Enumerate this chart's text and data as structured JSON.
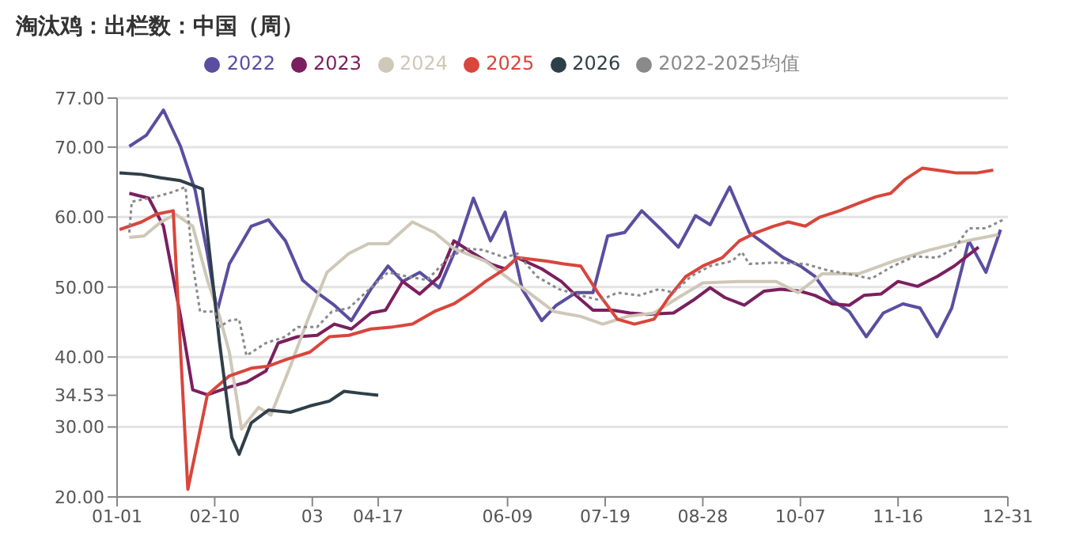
{
  "chart_data": {
    "type": "line",
    "title": "淘汰鸡：出栏数：中国（周）",
    "legend": "top",
    "grid": "y",
    "marker": "none",
    "xlim": [
      "--01-01",
      "--12-31"
    ],
    "xticks": [
      {
        "value": "--01-01",
        "label": "01-01"
      },
      {
        "value": "--02-10",
        "label": "02-10"
      },
      {
        "value": "--03-21",
        "label": "03"
      },
      {
        "value": "--04-17",
        "label": "04-17"
      },
      {
        "value": "--06-09",
        "label": "06-09"
      },
      {
        "value": "--07-19",
        "label": "07-19"
      },
      {
        "value": "--08-28",
        "label": "08-28"
      },
      {
        "value": "--10-07",
        "label": "10-07"
      },
      {
        "value": "--11-16",
        "label": "11-16"
      },
      {
        "value": "--12-31",
        "label": "12-31"
      }
    ],
    "ylim": [
      20,
      77
    ],
    "yticks": [
      {
        "value": 20,
        "label": "20.00"
      },
      {
        "value": 30,
        "label": "30.00"
      },
      {
        "value": 34.53,
        "label": "34.53"
      },
      {
        "value": 40,
        "label": "40.00"
      },
      {
        "value": 50,
        "label": "50.00"
      },
      {
        "value": 60,
        "label": "60.00"
      },
      {
        "value": 70,
        "label": "70.00"
      },
      {
        "value": 77,
        "label": "77.00"
      }
    ],
    "series": [
      {
        "name": "2022",
        "color": "#5b4ea0",
        "line_style": "solid",
        "x": [
          "--01-06",
          "--01-13",
          "--01-20",
          "--01-27",
          "--02-02",
          "--02-07",
          "--02-11",
          "--02-16",
          "--02-25",
          "--03-03",
          "--03-10",
          "--03-17",
          "--03-23",
          "--03-30",
          "--04-06",
          "--04-14",
          "--04-21",
          "--04-27",
          "--05-04",
          "--05-12",
          "--05-20",
          "--05-26",
          "--06-02",
          "--06-08",
          "--06-15",
          "--06-23",
          "--06-29",
          "--07-07",
          "--07-14",
          "--07-20",
          "--07-27",
          "--08-03",
          "--08-11",
          "--08-18",
          "--08-25",
          "--08-31",
          "--09-08",
          "--09-16",
          "--09-23",
          "--09-30",
          "--10-07",
          "--10-13",
          "--10-20",
          "--10-27",
          "--11-03",
          "--11-10",
          "--11-18",
          "--11-25",
          "--12-02",
          "--12-08",
          "--12-15",
          "--12-22",
          "--12-28"
        ],
        "values": [
          70.1,
          71.7,
          75.3,
          70.1,
          63.8,
          54.8,
          46.5,
          53.3,
          58.7,
          59.6,
          56.6,
          51,
          49.2,
          47.4,
          45.2,
          49.7,
          53,
          50.8,
          52.1,
          49.9,
          56.4,
          62.7,
          56.6,
          60.7,
          49.7,
          45.2,
          47.4,
          49.2,
          49.2,
          57.3,
          57.8,
          60.9,
          58.2,
          55.7,
          60.2,
          58.9,
          64.3,
          57.8,
          56,
          54.2,
          53,
          51.5,
          48.1,
          46.5,
          42.9,
          46.3,
          47.6,
          47,
          42.9,
          47,
          56.6,
          52.1,
          58.2
        ]
      },
      {
        "name": "2023",
        "color": "#7b1f5e",
        "line_style": "solid",
        "x": [
          "--01-06",
          "--01-14",
          "--01-20",
          "--01-27",
          "--02-01",
          "--02-07",
          "--02-16",
          "--02-23",
          "--03-02",
          "--03-07",
          "--03-15",
          "--03-23",
          "--03-30",
          "--04-06",
          "--04-14",
          "--04-20",
          "--04-27",
          "--05-04",
          "--05-12",
          "--05-18",
          "--05-26",
          "--06-02",
          "--06-08",
          "--06-13",
          "--06-23",
          "--07-01",
          "--07-07",
          "--07-14",
          "--07-22",
          "--07-29",
          "--08-05",
          "--08-16",
          "--08-24",
          "--08-31",
          "--09-06",
          "--09-14",
          "--09-22",
          "--09-29",
          "--10-07",
          "--10-13",
          "--10-20",
          "--10-27",
          "--11-02",
          "--11-09",
          "--11-16",
          "--11-24",
          "--12-02",
          "--12-09",
          "--12-19"
        ],
        "values": [
          63.4,
          62.7,
          58.7,
          45.8,
          35.3,
          34.6,
          35.7,
          36.4,
          38,
          42,
          42.9,
          43.1,
          44.7,
          44,
          46.3,
          46.7,
          50.8,
          49,
          51.5,
          56.6,
          54.8,
          53.3,
          52.6,
          54.2,
          52.6,
          50.8,
          48.8,
          46.7,
          46.7,
          46.3,
          46.1,
          46.3,
          48.1,
          49.9,
          48.5,
          47.4,
          49.4,
          49.7,
          49.4,
          48.8,
          47.6,
          47.4,
          48.8,
          49,
          50.8,
          50.1,
          51.5,
          53,
          55.7
        ]
      },
      {
        "name": "2024",
        "color": "#cfc7b8",
        "line_style": "solid",
        "x": [
          "--01-06",
          "--01-12",
          "--01-19",
          "--01-25",
          "--02-01",
          "--02-07",
          "--02-12",
          "--02-16",
          "--02-21",
          "--02-28",
          "--03-04",
          "--03-12",
          "--03-19",
          "--03-27",
          "--04-05",
          "--04-13",
          "--04-21",
          "--05-01",
          "--05-10",
          "--05-18",
          "--05-31",
          "--06-11",
          "--06-15",
          "--06-28",
          "--07-09",
          "--07-18",
          "--07-28",
          "--08-08",
          "--08-18",
          "--08-28",
          "--09-12",
          "--09-27",
          "--10-06",
          "--10-16",
          "--10-31",
          "--11-14",
          "--11-29",
          "--12-14",
          "--12-27"
        ],
        "values": [
          57.1,
          57.3,
          59.3,
          60.4,
          58.7,
          51,
          45.8,
          40.7,
          29.7,
          32.8,
          31.7,
          38.7,
          45.2,
          52.1,
          54.8,
          56.2,
          56.2,
          59.3,
          57.8,
          55.5,
          53.7,
          50.8,
          49.9,
          46.5,
          45.8,
          44.7,
          45.8,
          46.3,
          48.5,
          50.6,
          50.8,
          50.8,
          49.2,
          51.9,
          51.9,
          53.7,
          55.3,
          56.6,
          57.5
        ]
      },
      {
        "name": "2025",
        "color": "#d8463c",
        "line_style": "solid",
        "x": [
          "--01-02",
          "--01-11",
          "--01-17",
          "--01-24",
          "--01-30",
          "--02-07",
          "--02-16",
          "--02-25",
          "--03-03",
          "--03-10",
          "--03-20",
          "--03-28",
          "--04-05",
          "--04-14",
          "--04-23",
          "--05-01",
          "--05-10",
          "--05-18",
          "--05-25",
          "--05-31",
          "--06-08",
          "--06-13",
          "--06-25",
          "--07-02",
          "--07-09",
          "--07-16",
          "--07-24",
          "--07-31",
          "--08-08",
          "--08-14",
          "--08-21",
          "--08-28",
          "--09-05",
          "--09-12",
          "--09-19",
          "--09-26",
          "--10-02",
          "--10-09",
          "--10-15",
          "--10-23",
          "--10-31",
          "--11-07",
          "--11-13",
          "--11-19",
          "--11-26",
          "--12-02",
          "--12-10",
          "--12-18",
          "--12-25"
        ],
        "values": [
          58.2,
          59.3,
          60.4,
          60.9,
          21.1,
          34.6,
          37.3,
          38.4,
          38.7,
          39.6,
          40.7,
          42.9,
          43.1,
          44,
          44.3,
          44.7,
          46.5,
          47.6,
          49.2,
          50.8,
          52.6,
          54.2,
          53.7,
          53.3,
          53,
          49.2,
          45.4,
          44.7,
          45.4,
          48.5,
          51.5,
          53,
          54.2,
          56.6,
          57.8,
          58.7,
          59.3,
          58.7,
          60,
          60.9,
          62,
          62.9,
          63.4,
          65.4,
          67,
          66.7,
          66.3,
          66.3,
          66.7
        ]
      },
      {
        "name": "2026",
        "color": "#2f3f4a",
        "line_style": "solid",
        "x": [
          "--01-02",
          "--01-11",
          "--01-19",
          "--01-27",
          "--02-05",
          "--02-12",
          "--02-17",
          "--02-20",
          "--02-25",
          "--03-03",
          "--03-12",
          "--03-20",
          "--03-28",
          "--04-03",
          "--04-10",
          "--04-17"
        ],
        "values": [
          66.3,
          66.1,
          65.6,
          65.2,
          64,
          42,
          28.5,
          26.1,
          30.6,
          32.4,
          32.1,
          33,
          33.7,
          35.1,
          34.8,
          34.53
        ]
      },
      {
        "name": "2022-2025均值",
        "color": "#8a8a8a",
        "line_style": "dotted",
        "x": [
          "--01-06",
          "--01-07",
          "--01-17",
          "--01-24",
          "--01-29",
          "--02-01",
          "--02-04",
          "--02-10",
          "--02-12",
          "--02-16",
          "--02-20",
          "--02-23",
          "--03-02",
          "--03-10",
          "--03-15",
          "--03-23",
          "--03-29",
          "--04-05",
          "--04-14",
          "--04-21",
          "--04-29",
          "--05-07",
          "--05-16",
          "--05-23",
          "--05-30",
          "--06-08",
          "--06-13",
          "--06-21",
          "--06-30",
          "--07-09",
          "--07-17",
          "--07-24",
          "--08-02",
          "--08-10",
          "--08-16",
          "--08-23",
          "--08-31",
          "--09-09",
          "--09-13",
          "--09-16",
          "--09-26",
          "--10-09",
          "--10-18",
          "--10-26",
          "--11-05",
          "--11-14",
          "--11-23",
          "--12-02",
          "--12-09",
          "--12-15",
          "--12-22",
          "--12-29"
        ],
        "values": [
          57.8,
          62.2,
          62.9,
          63.6,
          64.3,
          53.3,
          46.5,
          46.5,
          44.3,
          45.2,
          45.4,
          40.2,
          42,
          42.9,
          44.3,
          44.3,
          46.5,
          47,
          49.9,
          52.1,
          51.5,
          51,
          54.2,
          55.5,
          55.3,
          54.2,
          54.8,
          51.5,
          49.7,
          48.8,
          48.1,
          49.2,
          48.8,
          49.7,
          49.2,
          51.5,
          53,
          53.7,
          55,
          53.3,
          53.5,
          53.3,
          52.4,
          51.9,
          51.2,
          53,
          54.4,
          54.2,
          55.5,
          58.4,
          58.4,
          59.6
        ]
      }
    ]
  }
}
